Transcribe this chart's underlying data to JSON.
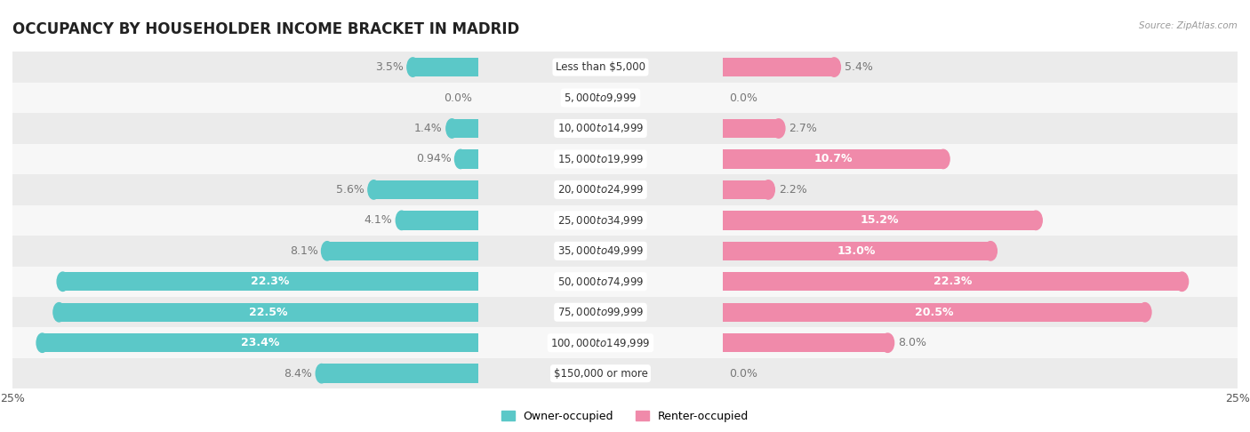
{
  "title": "OCCUPANCY BY HOUSEHOLDER INCOME BRACKET IN MADRID",
  "source": "Source: ZipAtlas.com",
  "categories": [
    "Less than $5,000",
    "$5,000 to $9,999",
    "$10,000 to $14,999",
    "$15,000 to $19,999",
    "$20,000 to $24,999",
    "$25,000 to $34,999",
    "$35,000 to $49,999",
    "$50,000 to $74,999",
    "$75,000 to $99,999",
    "$100,000 to $149,999",
    "$150,000 or more"
  ],
  "owner_values": [
    3.5,
    0.0,
    1.4,
    0.94,
    5.6,
    4.1,
    8.1,
    22.3,
    22.5,
    23.4,
    8.4
  ],
  "renter_values": [
    5.4,
    0.0,
    2.7,
    10.7,
    2.2,
    15.2,
    13.0,
    22.3,
    20.5,
    8.0,
    0.0
  ],
  "owner_color": "#5bc8c8",
  "renter_color": "#f08aaa",
  "owner_label": "Owner-occupied",
  "renter_label": "Renter-occupied",
  "bg_alt": "#ebebeb",
  "bg_main": "#f7f7f7",
  "max_value": 25.0,
  "title_fontsize": 12,
  "label_fontsize": 9,
  "bar_height": 0.62,
  "category_fontsize": 8.5,
  "value_label_color_outside": "#777777",
  "value_label_color_inside": "#ffffff"
}
